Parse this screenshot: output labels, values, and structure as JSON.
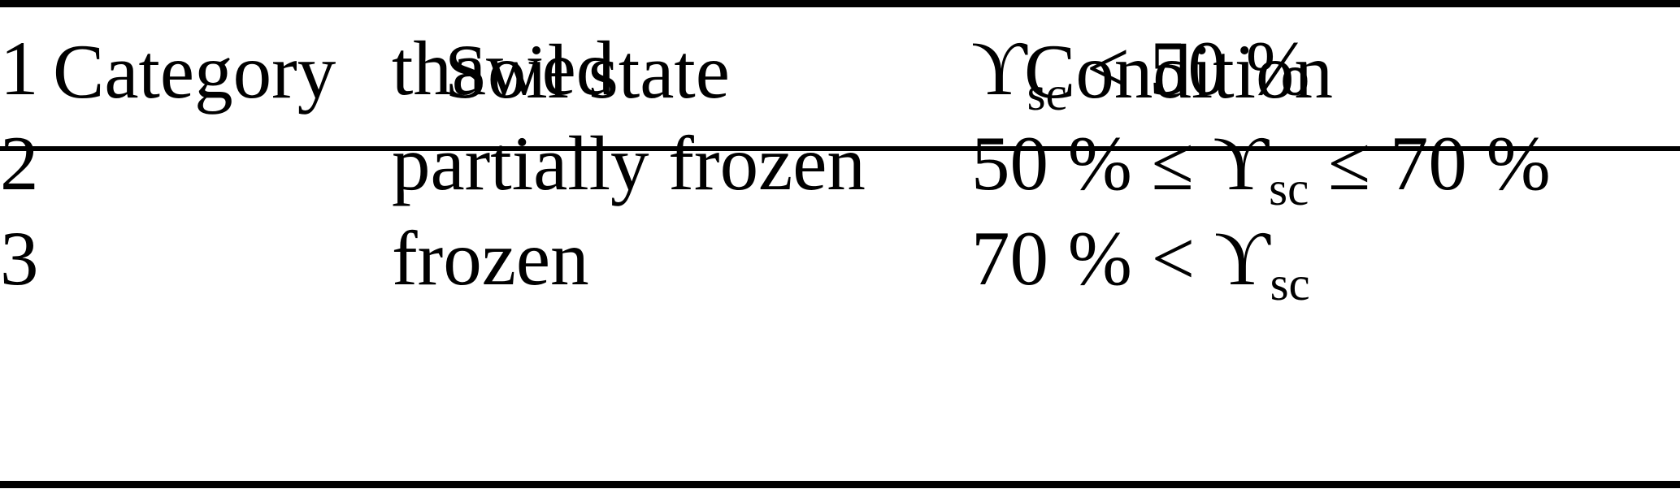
{
  "table": {
    "headers": [
      "Category",
      "Soil state",
      "Condition"
    ],
    "rows": [
      {
        "category": "1",
        "soil_state": "thawed",
        "condition": {
          "before": "",
          "symbol": "ϒ",
          "subscript": "sc",
          "after": " < 50 %"
        }
      },
      {
        "category": "2",
        "soil_state": "partially frozen",
        "condition": {
          "before": "50 % ≤ ",
          "symbol": "ϒ",
          "subscript": "sc",
          "after": " ≤ 70 %"
        }
      },
      {
        "category": "3",
        "soil_state": "frozen",
        "condition": {
          "before": "70 % < ",
          "symbol": "ϒ",
          "subscript": "sc",
          "after": ""
        }
      }
    ]
  },
  "colors": {
    "text": "#000000",
    "background": "#ffffff",
    "rule": "#000000"
  }
}
